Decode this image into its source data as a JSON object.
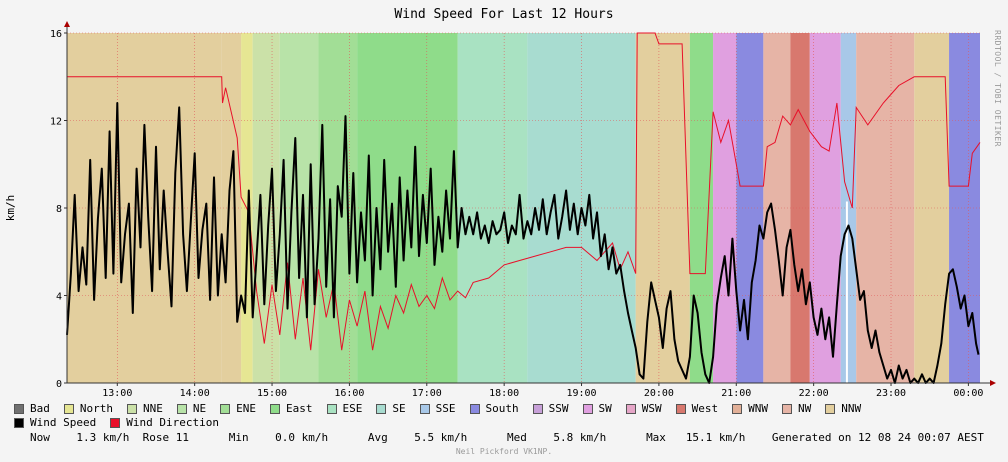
{
  "chart_data": {
    "type": "area",
    "title": "Wind Speed For Last 12 Hours",
    "ylabel": "km/h",
    "ylim": [
      0,
      16
    ],
    "yticks": [
      0,
      4,
      8,
      12,
      16
    ],
    "xlim": [
      12.35,
      24.15
    ],
    "xticks": [
      {
        "t": 13,
        "label": "13:00"
      },
      {
        "t": 14,
        "label": "14:00"
      },
      {
        "t": 15,
        "label": "15:00"
      },
      {
        "t": 16,
        "label": "16:00"
      },
      {
        "t": 17,
        "label": "17:00"
      },
      {
        "t": 18,
        "label": "18:00"
      },
      {
        "t": 19,
        "label": "19:00"
      },
      {
        "t": 20,
        "label": "20:00"
      },
      {
        "t": 21,
        "label": "21:00"
      },
      {
        "t": 22,
        "label": "22:00"
      },
      {
        "t": 23,
        "label": "23:00"
      },
      {
        "t": 24,
        "label": "00:00"
      }
    ],
    "grid": true,
    "direction_colors": {
      "Bad": "#707070",
      "North": "#e6e693",
      "NNE": "#cbe1a8",
      "NE": "#b8e3a8",
      "ENE": "#a2de96",
      "East": "#8fdc8a",
      "ESE": "#a9e2c2",
      "SE": "#a8dcd0",
      "SSE": "#a8c8e8",
      "South": "#8a8ae0",
      "SSW": "#c7a0d8",
      "SW": "#e0a0e0",
      "WSW": "#e6a6c8",
      "West": "#d8786e",
      "WNW": "#e2b098",
      "NW": "#e6b4a6",
      "NNW": "#e3cf9e"
    },
    "direction_segments": [
      {
        "from": 12.35,
        "to": 14.35,
        "dir": "NNW"
      },
      {
        "from": 14.35,
        "to": 14.6,
        "dir": "NNW"
      },
      {
        "from": 14.6,
        "to": 14.75,
        "dir": "North"
      },
      {
        "from": 14.75,
        "to": 15.1,
        "dir": "NNE"
      },
      {
        "from": 15.1,
        "to": 15.6,
        "dir": "NE"
      },
      {
        "from": 15.6,
        "to": 16.1,
        "dir": "ENE"
      },
      {
        "from": 16.1,
        "to": 17.4,
        "dir": "East"
      },
      {
        "from": 17.4,
        "to": 18.3,
        "dir": "ESE"
      },
      {
        "from": 18.3,
        "to": 19.7,
        "dir": "SE"
      },
      {
        "from": 19.7,
        "to": 20.4,
        "dir": "NNW"
      },
      {
        "from": 20.4,
        "to": 20.7,
        "dir": "East"
      },
      {
        "from": 20.7,
        "to": 21.0,
        "dir": "SW"
      },
      {
        "from": 21.0,
        "to": 21.35,
        "dir": "South"
      },
      {
        "from": 21.35,
        "to": 21.7,
        "dir": "NW"
      },
      {
        "from": 21.7,
        "to": 21.95,
        "dir": "West"
      },
      {
        "from": 21.95,
        "to": 22.35,
        "dir": "SW"
      },
      {
        "from": 22.35,
        "to": 22.55,
        "dir": "SSE"
      },
      {
        "from": 22.55,
        "to": 23.3,
        "dir": "NW"
      },
      {
        "from": 23.3,
        "to": 23.75,
        "dir": "NNW"
      },
      {
        "from": 23.75,
        "to": 24.15,
        "dir": "South"
      }
    ],
    "wind_direction_line": [
      [
        12.35,
        14
      ],
      [
        14.35,
        14
      ],
      [
        14.36,
        12.8
      ],
      [
        14.4,
        13.5
      ],
      [
        14.55,
        11.2
      ],
      [
        14.6,
        8.5
      ],
      [
        14.7,
        7.8
      ],
      [
        14.8,
        4.2
      ],
      [
        14.9,
        1.8
      ],
      [
        15.0,
        4.5
      ],
      [
        15.1,
        2.2
      ],
      [
        15.2,
        5.5
      ],
      [
        15.3,
        2.0
      ],
      [
        15.4,
        4.8
      ],
      [
        15.5,
        1.5
      ],
      [
        15.6,
        5.2
      ],
      [
        15.7,
        3.0
      ],
      [
        15.8,
        4.6
      ],
      [
        15.9,
        1.5
      ],
      [
        16.0,
        3.8
      ],
      [
        16.1,
        2.6
      ],
      [
        16.2,
        4.2
      ],
      [
        16.3,
        1.5
      ],
      [
        16.4,
        3.5
      ],
      [
        16.5,
        2.5
      ],
      [
        16.6,
        4.0
      ],
      [
        16.7,
        3.2
      ],
      [
        16.8,
        4.5
      ],
      [
        16.9,
        3.5
      ],
      [
        17.0,
        4.0
      ],
      [
        17.1,
        3.4
      ],
      [
        17.2,
        4.8
      ],
      [
        17.3,
        3.8
      ],
      [
        17.4,
        4.2
      ],
      [
        17.5,
        3.9
      ],
      [
        17.6,
        4.6
      ],
      [
        17.8,
        4.8
      ],
      [
        18.0,
        5.4
      ],
      [
        18.2,
        5.6
      ],
      [
        18.4,
        5.8
      ],
      [
        18.6,
        6.0
      ],
      [
        18.8,
        6.2
      ],
      [
        19.0,
        6.2
      ],
      [
        19.2,
        5.6
      ],
      [
        19.4,
        6.4
      ],
      [
        19.5,
        5.2
      ],
      [
        19.6,
        6.0
      ],
      [
        19.7,
        5.0
      ],
      [
        19.72,
        16
      ],
      [
        19.95,
        16
      ],
      [
        20.0,
        15.5
      ],
      [
        20.3,
        15.5
      ],
      [
        20.4,
        5.0
      ],
      [
        20.6,
        5.0
      ],
      [
        20.7,
        12.4
      ],
      [
        20.8,
        11.0
      ],
      [
        20.9,
        12.0
      ],
      [
        21.0,
        10.0
      ],
      [
        21.05,
        9.0
      ],
      [
        21.35,
        9.0
      ],
      [
        21.4,
        10.8
      ],
      [
        21.5,
        11.0
      ],
      [
        21.6,
        12.2
      ],
      [
        21.7,
        11.8
      ],
      [
        21.8,
        12.5
      ],
      [
        21.95,
        11.5
      ],
      [
        22.1,
        10.8
      ],
      [
        22.2,
        10.6
      ],
      [
        22.3,
        12.8
      ],
      [
        22.4,
        9.2
      ],
      [
        22.5,
        8.0
      ],
      [
        22.55,
        12.6
      ],
      [
        22.7,
        11.8
      ],
      [
        22.9,
        12.8
      ],
      [
        23.1,
        13.6
      ],
      [
        23.3,
        14
      ],
      [
        23.7,
        14
      ],
      [
        23.75,
        9.0
      ],
      [
        24.0,
        9.0
      ],
      [
        24.05,
        10.5
      ],
      [
        24.15,
        11.0
      ]
    ],
    "wind_speed_line": [
      [
        12.35,
        2.2
      ],
      [
        12.4,
        5.0
      ],
      [
        12.45,
        8.6
      ],
      [
        12.5,
        4.2
      ],
      [
        12.55,
        6.2
      ],
      [
        12.6,
        4.5
      ],
      [
        12.65,
        10.2
      ],
      [
        12.7,
        3.8
      ],
      [
        12.75,
        7.5
      ],
      [
        12.8,
        9.8
      ],
      [
        12.85,
        4.8
      ],
      [
        12.9,
        11.5
      ],
      [
        12.95,
        5.0
      ],
      [
        13.0,
        12.8
      ],
      [
        13.05,
        4.6
      ],
      [
        13.1,
        6.8
      ],
      [
        13.15,
        8.2
      ],
      [
        13.2,
        3.2
      ],
      [
        13.25,
        9.8
      ],
      [
        13.3,
        6.2
      ],
      [
        13.35,
        11.8
      ],
      [
        13.4,
        7.6
      ],
      [
        13.45,
        4.2
      ],
      [
        13.5,
        10.8
      ],
      [
        13.55,
        5.2
      ],
      [
        13.6,
        8.8
      ],
      [
        13.65,
        6.0
      ],
      [
        13.7,
        3.5
      ],
      [
        13.75,
        9.6
      ],
      [
        13.8,
        12.6
      ],
      [
        13.85,
        6.8
      ],
      [
        13.9,
        4.2
      ],
      [
        13.95,
        7.4
      ],
      [
        14.0,
        10.5
      ],
      [
        14.05,
        4.8
      ],
      [
        14.1,
        7.0
      ],
      [
        14.15,
        8.2
      ],
      [
        14.2,
        3.8
      ],
      [
        14.25,
        9.4
      ],
      [
        14.3,
        4.0
      ],
      [
        14.35,
        6.8
      ],
      [
        14.4,
        4.6
      ],
      [
        14.45,
        8.8
      ],
      [
        14.5,
        10.6
      ],
      [
        14.55,
        2.8
      ],
      [
        14.6,
        4.0
      ],
      [
        14.65,
        3.2
      ],
      [
        14.7,
        8.8
      ],
      [
        14.75,
        3.0
      ],
      [
        14.8,
        5.8
      ],
      [
        14.85,
        8.6
      ],
      [
        14.9,
        3.6
      ],
      [
        14.95,
        7.2
      ],
      [
        15.0,
        9.8
      ],
      [
        15.05,
        4.2
      ],
      [
        15.1,
        6.8
      ],
      [
        15.15,
        10.2
      ],
      [
        15.2,
        3.4
      ],
      [
        15.25,
        7.8
      ],
      [
        15.3,
        11.2
      ],
      [
        15.35,
        4.8
      ],
      [
        15.4,
        8.6
      ],
      [
        15.45,
        3.0
      ],
      [
        15.5,
        10.0
      ],
      [
        15.55,
        3.6
      ],
      [
        15.6,
        6.6
      ],
      [
        15.65,
        11.8
      ],
      [
        15.7,
        4.4
      ],
      [
        15.75,
        8.4
      ],
      [
        15.8,
        3.0
      ],
      [
        15.85,
        9.0
      ],
      [
        15.9,
        7.6
      ],
      [
        15.95,
        12.2
      ],
      [
        16.0,
        5.0
      ],
      [
        16.05,
        9.6
      ],
      [
        16.1,
        4.6
      ],
      [
        16.15,
        7.8
      ],
      [
        16.2,
        5.6
      ],
      [
        16.25,
        10.4
      ],
      [
        16.3,
        4.0
      ],
      [
        16.35,
        8.0
      ],
      [
        16.4,
        5.2
      ],
      [
        16.45,
        10.2
      ],
      [
        16.5,
        6.0
      ],
      [
        16.55,
        8.2
      ],
      [
        16.6,
        4.4
      ],
      [
        16.65,
        9.4
      ],
      [
        16.7,
        5.6
      ],
      [
        16.75,
        8.8
      ],
      [
        16.8,
        6.2
      ],
      [
        16.85,
        10.8
      ],
      [
        16.9,
        5.8
      ],
      [
        16.95,
        8.6
      ],
      [
        17.0,
        6.4
      ],
      [
        17.05,
        9.8
      ],
      [
        17.1,
        5.4
      ],
      [
        17.15,
        7.6
      ],
      [
        17.2,
        6.0
      ],
      [
        17.25,
        8.8
      ],
      [
        17.3,
        6.6
      ],
      [
        17.35,
        10.6
      ],
      [
        17.4,
        6.2
      ],
      [
        17.45,
        8.0
      ],
      [
        17.5,
        6.8
      ],
      [
        17.55,
        7.6
      ],
      [
        17.6,
        6.8
      ],
      [
        17.65,
        7.8
      ],
      [
        17.7,
        6.6
      ],
      [
        17.75,
        7.2
      ],
      [
        17.8,
        6.4
      ],
      [
        17.85,
        7.4
      ],
      [
        17.9,
        6.8
      ],
      [
        17.95,
        7.0
      ],
      [
        18.0,
        7.8
      ],
      [
        18.05,
        6.4
      ],
      [
        18.1,
        7.2
      ],
      [
        18.15,
        6.8
      ],
      [
        18.2,
        8.6
      ],
      [
        18.25,
        6.6
      ],
      [
        18.3,
        7.4
      ],
      [
        18.35,
        6.8
      ],
      [
        18.4,
        8.0
      ],
      [
        18.45,
        7.0
      ],
      [
        18.5,
        8.4
      ],
      [
        18.55,
        6.8
      ],
      [
        18.6,
        7.8
      ],
      [
        18.65,
        8.6
      ],
      [
        18.7,
        6.6
      ],
      [
        18.75,
        7.6
      ],
      [
        18.8,
        8.8
      ],
      [
        18.85,
        7.0
      ],
      [
        18.9,
        8.2
      ],
      [
        18.95,
        6.8
      ],
      [
        19.0,
        8.0
      ],
      [
        19.05,
        7.2
      ],
      [
        19.1,
        8.6
      ],
      [
        19.15,
        6.6
      ],
      [
        19.2,
        7.8
      ],
      [
        19.25,
        5.8
      ],
      [
        19.3,
        6.8
      ],
      [
        19.35,
        5.2
      ],
      [
        19.4,
        6.2
      ],
      [
        19.45,
        5.0
      ],
      [
        19.5,
        5.4
      ],
      [
        19.55,
        4.2
      ],
      [
        19.6,
        3.2
      ],
      [
        19.65,
        2.4
      ],
      [
        19.7,
        1.6
      ],
      [
        19.75,
        0.4
      ],
      [
        19.8,
        0.2
      ],
      [
        19.85,
        2.8
      ],
      [
        19.9,
        4.6
      ],
      [
        19.95,
        3.8
      ],
      [
        20.0,
        3.0
      ],
      [
        20.05,
        1.6
      ],
      [
        20.1,
        3.4
      ],
      [
        20.15,
        4.2
      ],
      [
        20.2,
        2.0
      ],
      [
        20.25,
        1.0
      ],
      [
        20.3,
        0.6
      ],
      [
        20.35,
        0.2
      ],
      [
        20.4,
        1.2
      ],
      [
        20.45,
        4.0
      ],
      [
        20.5,
        3.2
      ],
      [
        20.55,
        1.4
      ],
      [
        20.6,
        0.4
      ],
      [
        20.65,
        0.0
      ],
      [
        20.7,
        1.2
      ],
      [
        20.75,
        3.6
      ],
      [
        20.8,
        4.8
      ],
      [
        20.85,
        5.8
      ],
      [
        20.9,
        4.0
      ],
      [
        20.95,
        6.6
      ],
      [
        21.0,
        4.2
      ],
      [
        21.05,
        2.4
      ],
      [
        21.1,
        3.8
      ],
      [
        21.15,
        2.0
      ],
      [
        21.2,
        4.6
      ],
      [
        21.25,
        5.6
      ],
      [
        21.3,
        7.2
      ],
      [
        21.35,
        6.6
      ],
      [
        21.4,
        7.8
      ],
      [
        21.45,
        8.2
      ],
      [
        21.5,
        7.0
      ],
      [
        21.55,
        5.6
      ],
      [
        21.6,
        4.0
      ],
      [
        21.65,
        6.2
      ],
      [
        21.7,
        7.0
      ],
      [
        21.75,
        5.4
      ],
      [
        21.8,
        4.2
      ],
      [
        21.85,
        5.2
      ],
      [
        21.9,
        3.6
      ],
      [
        21.95,
        4.6
      ],
      [
        22.0,
        3.0
      ],
      [
        22.05,
        2.2
      ],
      [
        22.1,
        3.4
      ],
      [
        22.15,
        2.0
      ],
      [
        22.2,
        3.0
      ],
      [
        22.25,
        1.2
      ],
      [
        22.3,
        3.6
      ],
      [
        22.35,
        5.8
      ],
      [
        22.4,
        6.8
      ],
      [
        22.45,
        7.2
      ],
      [
        22.5,
        6.6
      ],
      [
        22.55,
        5.2
      ],
      [
        22.6,
        3.8
      ],
      [
        22.65,
        4.2
      ],
      [
        22.7,
        2.4
      ],
      [
        22.75,
        1.6
      ],
      [
        22.8,
        2.4
      ],
      [
        22.85,
        1.4
      ],
      [
        22.9,
        0.8
      ],
      [
        22.95,
        0.2
      ],
      [
        23.0,
        0.6
      ],
      [
        23.05,
        0.0
      ],
      [
        23.1,
        0.8
      ],
      [
        23.15,
        0.2
      ],
      [
        23.2,
        0.6
      ],
      [
        23.25,
        0.0
      ],
      [
        23.3,
        0.2
      ],
      [
        23.35,
        0.0
      ],
      [
        23.4,
        0.4
      ],
      [
        23.45,
        0.0
      ],
      [
        23.5,
        0.2
      ],
      [
        23.55,
        0.0
      ],
      [
        23.6,
        0.8
      ],
      [
        23.65,
        1.8
      ],
      [
        23.7,
        3.6
      ],
      [
        23.75,
        5.0
      ],
      [
        23.8,
        5.2
      ],
      [
        23.85,
        4.4
      ],
      [
        23.9,
        3.4
      ],
      [
        23.95,
        4.0
      ],
      [
        24.0,
        2.6
      ],
      [
        24.05,
        3.2
      ],
      [
        24.1,
        1.8
      ],
      [
        24.13,
        1.3
      ]
    ],
    "max_marker_t": 22.43
  },
  "legend": {
    "directions": [
      "Bad",
      "North",
      "NNE",
      "NE",
      "ENE",
      "East",
      "ESE",
      "SE",
      "SSE",
      "South",
      "SSW",
      "SW",
      "WSW",
      "West",
      "WNW",
      "NW",
      "NNW"
    ],
    "series": [
      {
        "name": "Wind Speed",
        "color": "#000000"
      },
      {
        "name": "Wind Direction",
        "color": "#e8102a"
      }
    ]
  },
  "stats": {
    "now_label": "Now",
    "now_value": "1.3 km/h",
    "rose_label": "Rose",
    "rose_value": "11",
    "min_label": "Min",
    "min_value": "0.0 km/h",
    "avg_label": "Avg",
    "avg_value": "5.5 km/h",
    "med_label": "Med",
    "med_value": "5.8 km/h",
    "max_label": "Max",
    "max_value": "15.1 km/h",
    "generated": "Generated on 12 08 24 00:07 AEST"
  },
  "credits": {
    "bottom": "Neil Pickford VK1NP.",
    "side": "RRDTOOL / TOBI OETIKER"
  }
}
